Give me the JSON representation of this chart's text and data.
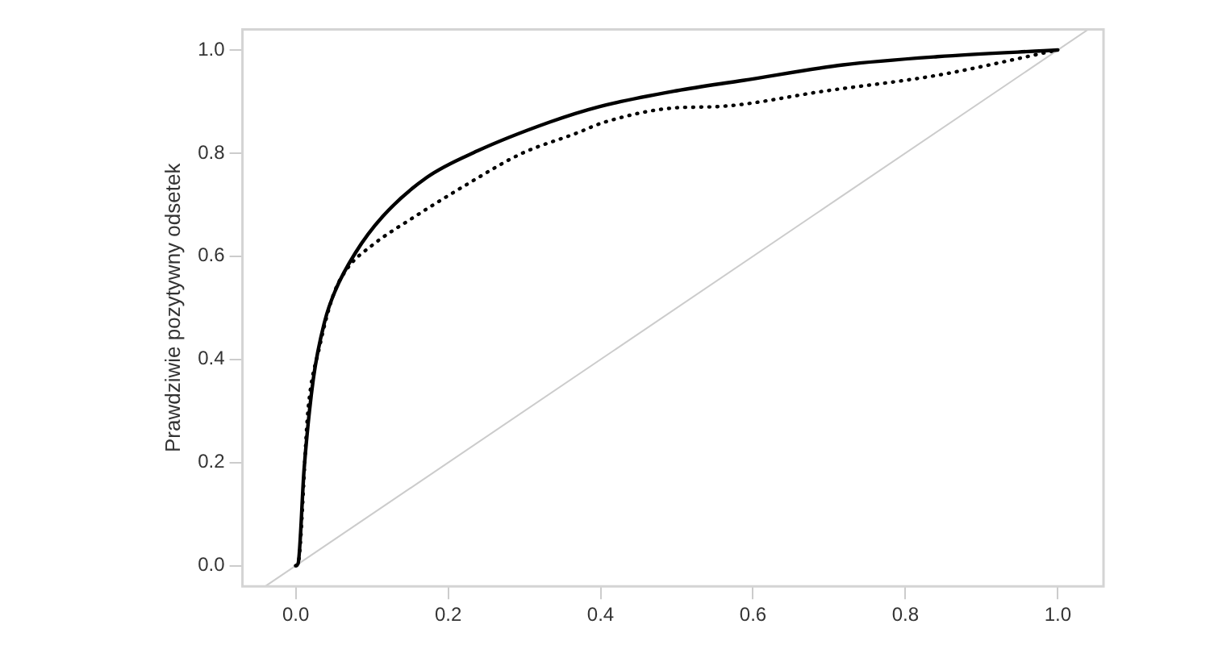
{
  "chart_data": {
    "type": "line",
    "ylabel": "Prawdziwie pozytywny odsetek",
    "xlim": [
      -0.07,
      1.06
    ],
    "ylim": [
      -0.04,
      1.04
    ],
    "xticks": [
      {
        "value": 0,
        "label": "0.0"
      },
      {
        "value": 0.2,
        "label": "0.2"
      },
      {
        "value": 0.4,
        "label": "0.4"
      },
      {
        "value": 0.6,
        "label": "0.6"
      },
      {
        "value": 0.8,
        "label": "0.8"
      },
      {
        "value": 1,
        "label": "1.0"
      }
    ],
    "yticks": [
      {
        "value": 0,
        "label": "0.0"
      },
      {
        "value": 0.2,
        "label": "0.2"
      },
      {
        "value": 0.4,
        "label": "0.4"
      },
      {
        "value": 0.6,
        "label": "0.6"
      },
      {
        "value": 0.8,
        "label": "0.8"
      },
      {
        "value": 1,
        "label": "1.0"
      }
    ],
    "grid": false,
    "legend": false,
    "marker": "none",
    "series": [
      {
        "color": "#000000",
        "line_style": "solid",
        "x": [
          0,
          0.003,
          0.011,
          0.023,
          0.038,
          0.052,
          0.078,
          0.114,
          0.172,
          0.238,
          0.333,
          0.398,
          0.5,
          0.587,
          0.718,
          0.842,
          1
        ],
        "values": [
          0,
          0.004,
          0.189,
          0.362,
          0.474,
          0.534,
          0.606,
          0.677,
          0.753,
          0.804,
          0.86,
          0.89,
          0.921,
          0.941,
          0.971,
          0.987,
          1
        ]
      },
      {
        "color": "#000000",
        "line_style": "dotted",
        "x": [
          0,
          0.003,
          0.016,
          0.031,
          0.049,
          0.067,
          0.1,
          0.151,
          0.223,
          0.296,
          0.369,
          0.405,
          0.5,
          0.551,
          0.697,
          0.842,
          1
        ],
        "values": [
          0,
          0.004,
          0.301,
          0.423,
          0.524,
          0.575,
          0.621,
          0.672,
          0.738,
          0.799,
          0.839,
          0.86,
          0.888,
          0.89,
          0.921,
          0.951,
          1
        ]
      },
      {
        "color": "#cccccc",
        "line_style": "solid",
        "x": [
          -0.04,
          1.04
        ],
        "values": [
          -0.04,
          1.04
        ]
      }
    ]
  }
}
